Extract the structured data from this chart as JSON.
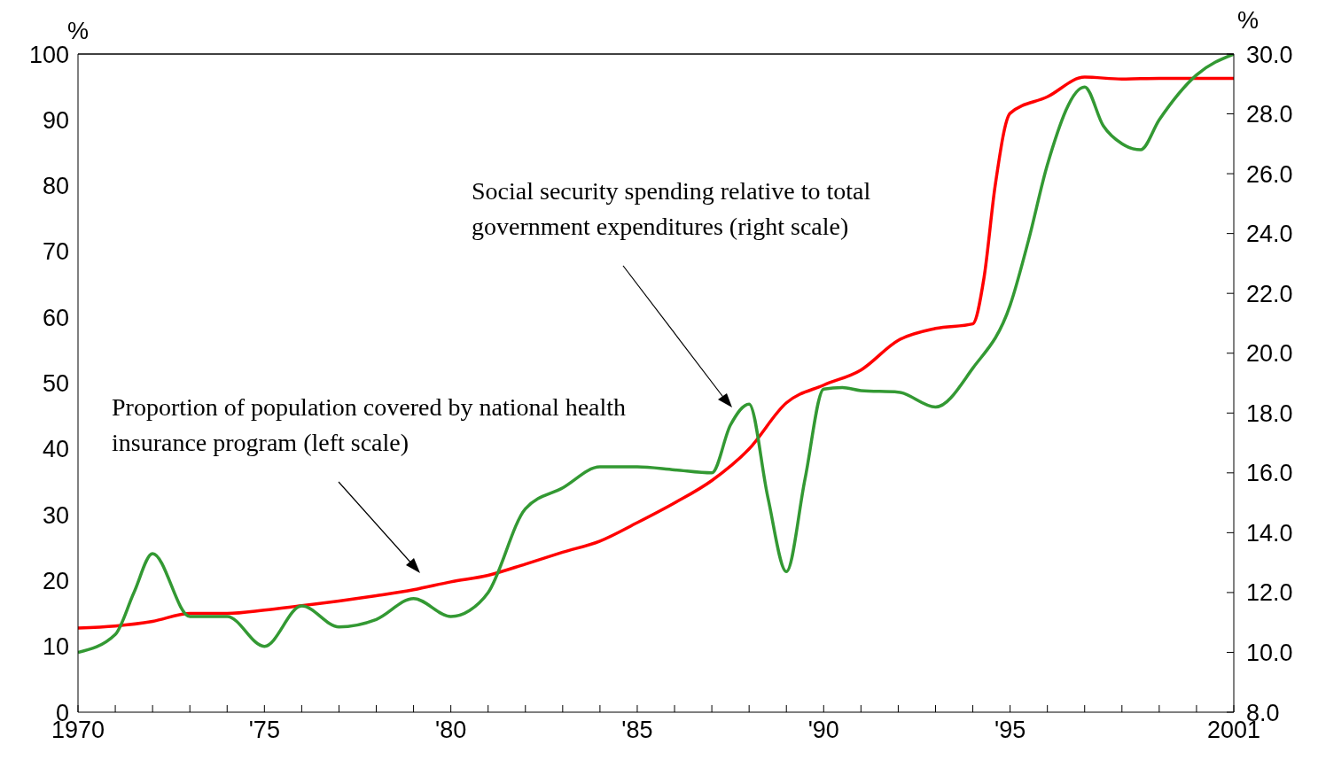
{
  "chart_data": {
    "type": "line",
    "ylabel": "%",
    "y2label": "%",
    "annotations": [
      "Social security spending relative to total government expenditures (right scale)",
      "Proportion of population covered by national health insurance program (left scale)"
    ],
    "xlim": [
      1970,
      2001
    ],
    "xticks": [
      {
        "value": 1970,
        "label": "1970"
      },
      {
        "value": 1971,
        "label": null
      },
      {
        "value": 1972,
        "label": null
      },
      {
        "value": 1973,
        "label": null
      },
      {
        "value": 1974,
        "label": null
      },
      {
        "value": 1975,
        "label": "'75"
      },
      {
        "value": 1976,
        "label": null
      },
      {
        "value": 1977,
        "label": null
      },
      {
        "value": 1978,
        "label": null
      },
      {
        "value": 1979,
        "label": null
      },
      {
        "value": 1980,
        "label": "'80"
      },
      {
        "value": 1981,
        "label": null
      },
      {
        "value": 1982,
        "label": null
      },
      {
        "value": 1983,
        "label": null
      },
      {
        "value": 1984,
        "label": null
      },
      {
        "value": 1985,
        "label": "'85"
      },
      {
        "value": 1986,
        "label": null
      },
      {
        "value": 1987,
        "label": null
      },
      {
        "value": 1988,
        "label": null
      },
      {
        "value": 1989,
        "label": null
      },
      {
        "value": 1990,
        "label": "'90"
      },
      {
        "value": 1991,
        "label": null
      },
      {
        "value": 1992,
        "label": null
      },
      {
        "value": 1993,
        "label": null
      },
      {
        "value": 1994,
        "label": null
      },
      {
        "value": 1995,
        "label": "'95"
      },
      {
        "value": 1996,
        "label": null
      },
      {
        "value": 1997,
        "label": null
      },
      {
        "value": 1998,
        "label": null
      },
      {
        "value": 1999,
        "label": null
      },
      {
        "value": 2000,
        "label": null
      },
      {
        "value": 2001,
        "label": "2001"
      }
    ],
    "ylim": [
      0,
      100
    ],
    "yticks": [
      0,
      10,
      20,
      30,
      40,
      50,
      60,
      70,
      80,
      90,
      100
    ],
    "y2lim": [
      8,
      30
    ],
    "y2ticks": [
      {
        "value": 8,
        "label": "8.0"
      },
      {
        "value": 10,
        "label": "10.0"
      },
      {
        "value": 12,
        "label": "12.0"
      },
      {
        "value": 14,
        "label": "14.0"
      },
      {
        "value": 16,
        "label": "16.0"
      },
      {
        "value": 18,
        "label": "18.0"
      },
      {
        "value": 20,
        "label": "20.0"
      },
      {
        "value": 22,
        "label": "22.0"
      },
      {
        "value": 24,
        "label": "24.0"
      },
      {
        "value": 26,
        "label": "26.0"
      },
      {
        "value": 28,
        "label": "28.0"
      },
      {
        "value": 30,
        "label": "30.0"
      }
    ],
    "series": [
      {
        "color": "#ff0000",
        "x": [
          1970,
          1971,
          1972,
          1973,
          1974,
          1975,
          1976,
          1977,
          1978,
          1979,
          1980,
          1981,
          1982,
          1983,
          1984,
          1985,
          1986,
          1987,
          1988,
          1989,
          1990,
          1991,
          1992,
          1993,
          1994,
          1994.3,
          1994.6,
          1995,
          1996,
          1997,
          1998,
          1999,
          2000,
          2001
        ],
        "values": [
          12.8,
          13.1,
          13.8,
          15.0,
          15.0,
          15.5,
          16.2,
          16.9,
          17.7,
          18.6,
          19.8,
          20.8,
          22.5,
          24.3,
          26.0,
          28.8,
          31.8,
          35.2,
          40.0,
          47.0,
          49.7,
          52.0,
          56.5,
          58.3,
          59.0,
          66,
          80,
          91,
          93.5,
          96.5,
          96.2,
          96.3,
          96.3,
          96.3
        ]
      },
      {
        "color": "#339933",
        "axis": "y2",
        "x": [
          1970,
          1971,
          1971.5,
          1972,
          1973,
          1974,
          1975,
          1976,
          1977,
          1978,
          1979,
          1980,
          1980.5,
          1981,
          1982,
          1983,
          1984,
          1985,
          1986,
          1987,
          1987.5,
          1988,
          1988.5,
          1989,
          1989.5,
          1990,
          1990.5,
          1991,
          1992,
          1993,
          1994,
          1995,
          1995.5,
          1996,
          1997,
          1997.5,
          1998,
          1998.5,
          1999,
          2000,
          2001
        ],
        "values": [
          10.0,
          10.6,
          12.0,
          13.3,
          11.2,
          11.2,
          10.2,
          11.55,
          10.85,
          11.1,
          11.8,
          11.2,
          11.4,
          12.0,
          14.8,
          15.5,
          16.2,
          16.2,
          16.1,
          16.0,
          17.6,
          18.3,
          15.2,
          12.7,
          15.8,
          18.8,
          18.85,
          18.75,
          18.7,
          18.2,
          19.5,
          21.6,
          23.8,
          26.3,
          28.9,
          27.6,
          27.0,
          26.8,
          27.8,
          29.3,
          30.0
        ]
      }
    ]
  }
}
